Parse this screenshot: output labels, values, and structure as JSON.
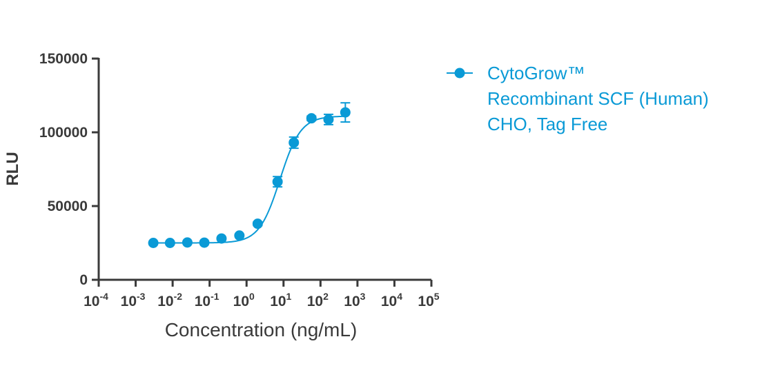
{
  "chart_data": {
    "type": "scatter",
    "title": "",
    "xlabel": "Concentration (ng/mL)",
    "ylabel": "RLU",
    "x_scale": "log",
    "xlim": [
      0.0001,
      100000
    ],
    "ylim": [
      0,
      150000
    ],
    "x_ticks": [
      {
        "base": "10",
        "exp": "-4"
      },
      {
        "base": "10",
        "exp": "-3"
      },
      {
        "base": "10",
        "exp": "-2"
      },
      {
        "base": "10",
        "exp": "-1"
      },
      {
        "base": "10",
        "exp": "0"
      },
      {
        "base": "10",
        "exp": "1"
      },
      {
        "base": "10",
        "exp": "2"
      },
      {
        "base": "10",
        "exp": "3"
      },
      {
        "base": "10",
        "exp": "4"
      },
      {
        "base": "10",
        "exp": "5"
      }
    ],
    "y_ticks": [
      "0",
      "50000",
      "100000",
      "150000"
    ],
    "y_tick_values": [
      0,
      50000,
      100000,
      150000
    ],
    "grid": false,
    "legend_position": "top-right",
    "series": [
      {
        "name": "CytoGrow™ Recombinant SCF (Human) CHO, Tag Free",
        "legend_lines": [
          "CytoGrow™",
          "Recombinant SCF (Human)",
          "CHO, Tag Free"
        ],
        "color": "#0a9ad6",
        "x": [
          0.003,
          0.0085,
          0.025,
          0.072,
          0.21,
          0.64,
          2.0,
          6.9,
          19.0,
          57.0,
          165.0,
          470.0
        ],
        "y": [
          25000,
          25000,
          25300,
          25200,
          28000,
          30000,
          38000,
          66500,
          93000,
          109500,
          108700,
          113500
        ],
        "err": [
          600,
          600,
          600,
          600,
          800,
          800,
          1200,
          3500,
          3800,
          1500,
          3500,
          6500
        ],
        "fit": {
          "bottom": 25000,
          "top": 111000,
          "ec50": 8.0,
          "hill": 1.55
        }
      }
    ]
  }
}
